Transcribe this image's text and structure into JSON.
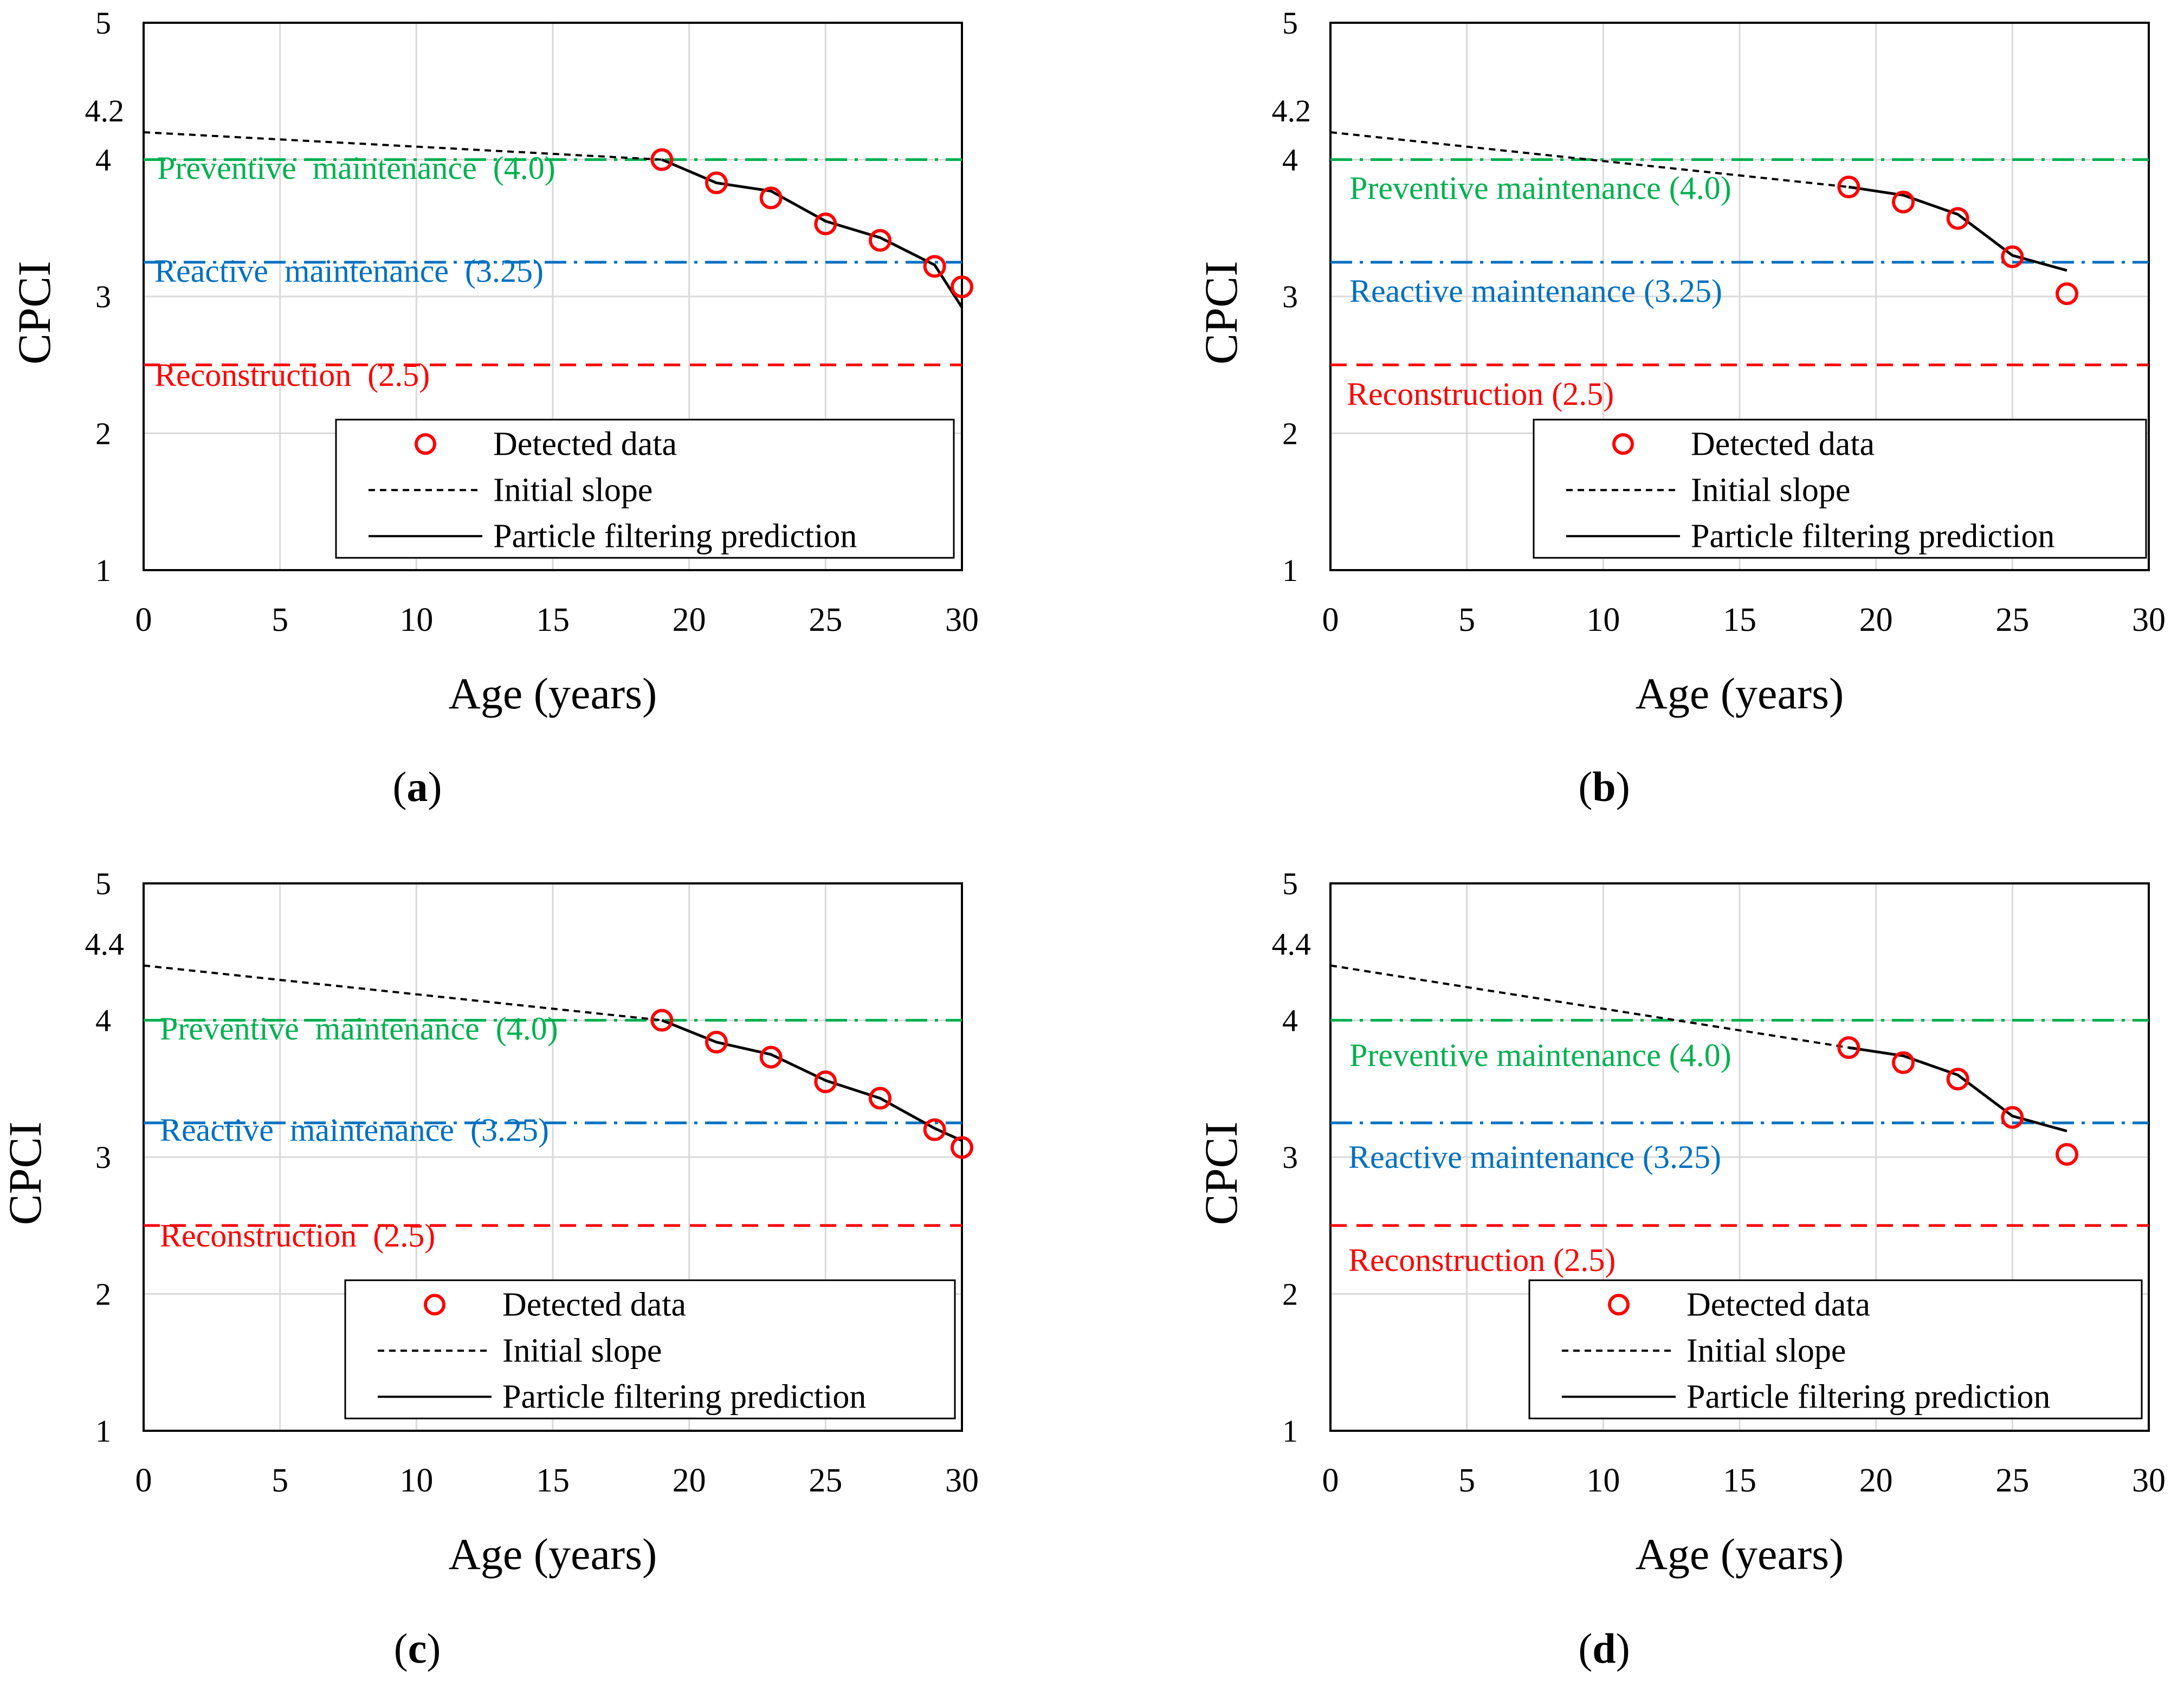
{
  "figure": {
    "colors": {
      "preventive": "#00B050",
      "reactive": "#0070C0",
      "reconstruction": "#FF0000",
      "marker": "#FF0000",
      "line": "#000000",
      "grid": "#D9D9D9"
    }
  },
  "chart_data": [
    {
      "panel_label": "a",
      "type": "line",
      "xlabel": "Age (years)",
      "ylabel": "CPCI",
      "xlim": [
        0,
        30
      ],
      "ylim": [
        1,
        5
      ],
      "xticks": [
        "0",
        "5",
        "10",
        "15",
        "20",
        "25",
        "30"
      ],
      "yticks": [
        "1",
        "2",
        "3",
        "4",
        "5"
      ],
      "initial_label": "4.2",
      "initial_value": 4.2,
      "thresholds": [
        {
          "key": "preventive",
          "label": "Preventive  maintenance  (4.0)",
          "value": 4.0
        },
        {
          "key": "reactive",
          "label": "Reactive  maintenance  (3.25)",
          "value": 3.25
        },
        {
          "key": "reconstruction",
          "label": "Reconstruction  (2.5)",
          "value": 2.5
        }
      ],
      "series": [
        {
          "name": "Detected data",
          "kind": "markers",
          "x": [
            19,
            21,
            23,
            25,
            27,
            29,
            30
          ],
          "y": [
            4.0,
            3.83,
            3.72,
            3.53,
            3.41,
            3.22,
            3.07
          ]
        },
        {
          "name": "Initial slope",
          "kind": "dashed",
          "x": [
            0,
            19
          ],
          "y": [
            4.2,
            4.0
          ]
        },
        {
          "name": "Particle filtering prediction",
          "kind": "solid",
          "x": [
            19,
            21,
            23,
            25,
            27,
            29,
            30
          ],
          "y": [
            4.0,
            3.83,
            3.77,
            3.55,
            3.43,
            3.23,
            2.92
          ]
        }
      ]
    },
    {
      "panel_label": "b",
      "type": "line",
      "xlabel": "Age (years)",
      "ylabel": "CPCI",
      "xlim": [
        0,
        30
      ],
      "ylim": [
        1,
        5
      ],
      "xticks": [
        "0",
        "5",
        "10",
        "15",
        "20",
        "25",
        "30"
      ],
      "yticks": [
        "1",
        "2",
        "3",
        "4",
        "5"
      ],
      "initial_label": "4.2",
      "initial_value": 4.2,
      "thresholds": [
        {
          "key": "preventive",
          "label": "Preventive maintenance (4.0)",
          "value": 4.0
        },
        {
          "key": "reactive",
          "label": "Reactive maintenance (3.25)",
          "value": 3.25
        },
        {
          "key": "reconstruction",
          "label": "Reconstruction (2.5)",
          "value": 2.5
        }
      ],
      "series": [
        {
          "name": "Detected data",
          "kind": "markers",
          "x": [
            19,
            21,
            23,
            25,
            27
          ],
          "y": [
            3.8,
            3.69,
            3.57,
            3.29,
            3.02
          ]
        },
        {
          "name": "Initial slope",
          "kind": "dashed",
          "x": [
            0,
            19
          ],
          "y": [
            4.2,
            3.8
          ]
        },
        {
          "name": "Particle filtering prediction",
          "kind": "solid",
          "x": [
            19,
            21,
            23,
            25,
            27
          ],
          "y": [
            3.8,
            3.74,
            3.6,
            3.3,
            3.19
          ]
        }
      ]
    },
    {
      "panel_label": "c",
      "type": "line",
      "xlabel": "Age (years)",
      "ylabel": "CPCI",
      "xlim": [
        0,
        30
      ],
      "ylim": [
        1,
        5
      ],
      "xticks": [
        "0",
        "5",
        "10",
        "15",
        "20",
        "25",
        "30"
      ],
      "yticks": [
        "1",
        "2",
        "3",
        "4",
        "5"
      ],
      "initial_label": "4.4",
      "initial_value": 4.4,
      "thresholds": [
        {
          "key": "preventive",
          "label": "Preventive  maintenance  (4.0)",
          "value": 4.0
        },
        {
          "key": "reactive",
          "label": "Reactive  maintenance  (3.25)",
          "value": 3.25
        },
        {
          "key": "reconstruction",
          "label": "Reconstruction  (2.5)",
          "value": 2.5
        }
      ],
      "series": [
        {
          "name": "Detected data",
          "kind": "markers",
          "x": [
            19,
            21,
            23,
            25,
            27,
            29,
            30
          ],
          "y": [
            4.0,
            3.84,
            3.73,
            3.55,
            3.43,
            3.2,
            3.07
          ]
        },
        {
          "name": "Initial slope",
          "kind": "dashed",
          "x": [
            0,
            19
          ],
          "y": [
            4.4,
            4.0
          ]
        },
        {
          "name": "Particle filtering prediction",
          "kind": "solid",
          "x": [
            19,
            21,
            23,
            25,
            27,
            29,
            30
          ],
          "y": [
            4.0,
            3.84,
            3.75,
            3.56,
            3.43,
            3.21,
            3.12
          ]
        }
      ]
    },
    {
      "panel_label": "d",
      "type": "line",
      "xlabel": "Age (years)",
      "ylabel": "CPCI",
      "xlim": [
        0,
        30
      ],
      "ylim": [
        1,
        5
      ],
      "xticks": [
        "0",
        "5",
        "10",
        "15",
        "20",
        "25",
        "30"
      ],
      "yticks": [
        "1",
        "2",
        "3",
        "4",
        "5"
      ],
      "initial_label": "4.4",
      "initial_value": 4.4,
      "thresholds": [
        {
          "key": "preventive",
          "label": "Preventive maintenance (4.0)",
          "value": 4.0
        },
        {
          "key": "reactive",
          "label": "Reactive maintenance (3.25)",
          "value": 3.25
        },
        {
          "key": "reconstruction",
          "label": "Reconstruction (2.5)",
          "value": 2.5
        }
      ],
      "series": [
        {
          "name": "Detected data",
          "kind": "markers",
          "x": [
            19,
            21,
            23,
            25,
            27
          ],
          "y": [
            3.8,
            3.69,
            3.57,
            3.29,
            3.02
          ]
        },
        {
          "name": "Initial slope",
          "kind": "dashed",
          "x": [
            0,
            19
          ],
          "y": [
            4.4,
            3.8
          ]
        },
        {
          "name": "Particle filtering prediction",
          "kind": "solid",
          "x": [
            19,
            21,
            23,
            25,
            27
          ],
          "y": [
            3.8,
            3.74,
            3.6,
            3.3,
            3.19
          ]
        }
      ]
    }
  ]
}
